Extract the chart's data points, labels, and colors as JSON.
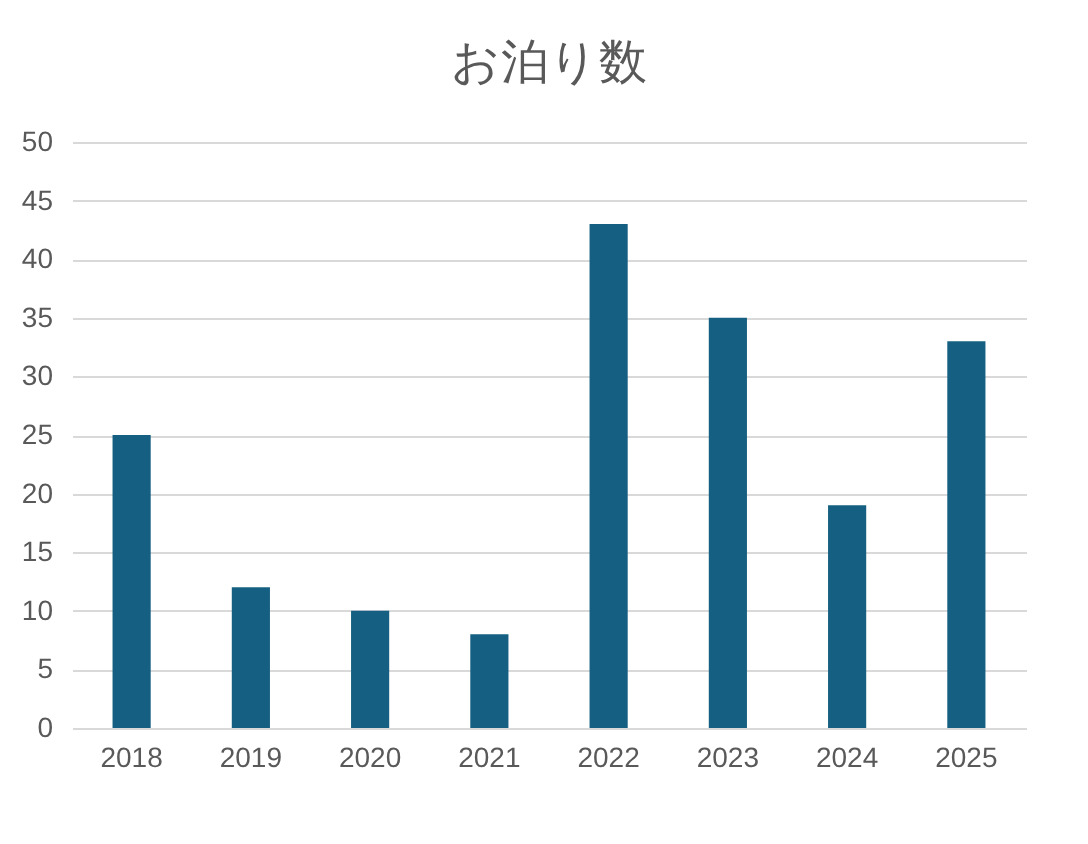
{
  "chart_data": {
    "type": "bar",
    "title": "お泊り数",
    "categories": [
      "2018",
      "2019",
      "2020",
      "2021",
      "2022",
      "2023",
      "2024",
      "2025"
    ],
    "values": [
      25,
      12,
      10,
      8,
      43,
      35,
      19,
      33
    ],
    "color": "#156082",
    "ylim": [
      0,
      50
    ],
    "yticks": [
      0,
      5,
      10,
      15,
      20,
      25,
      30,
      35,
      40,
      45,
      50
    ],
    "grid": "y"
  }
}
